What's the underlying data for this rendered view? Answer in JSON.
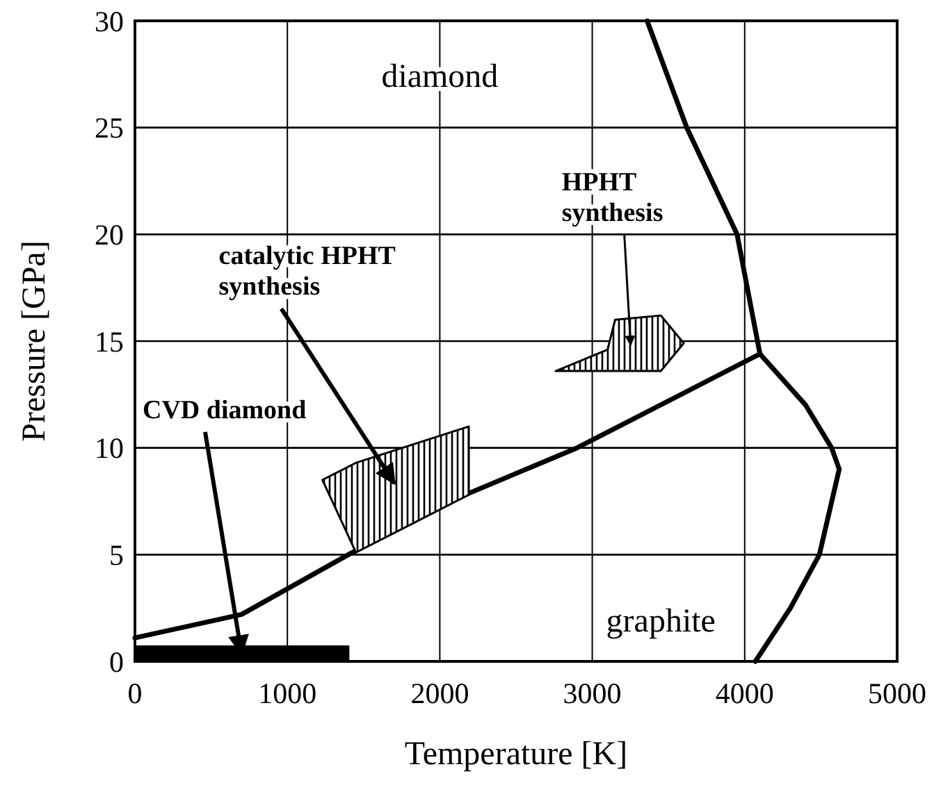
{
  "chart_data": {
    "type": "line",
    "xlabel": "Temperature [K]",
    "ylabel": "Pressure [GPa]",
    "xlim": [
      0,
      5000
    ],
    "xticks": [
      0,
      1000,
      2000,
      3000,
      4000,
      5000
    ],
    "ylim": [
      0,
      30
    ],
    "yticks": [
      0,
      5,
      10,
      15,
      20,
      25,
      30
    ],
    "grid": true,
    "series": [
      {
        "color": "#000000",
        "x": [
          0,
          700,
          1400,
          2000,
          2900,
          4100
        ],
        "values": [
          1.1,
          2.2,
          5,
          7.3,
          10,
          14.4
        ]
      },
      {
        "color": "#000000",
        "x": [
          4100,
          3950,
          3620,
          3360
        ],
        "values": [
          14.4,
          20,
          25,
          30
        ]
      },
      {
        "color": "#000000",
        "x": [
          4100,
          4400,
          4570,
          4620,
          4490,
          4300,
          4070
        ],
        "values": [
          14.4,
          12,
          10,
          9,
          5,
          2.5,
          0
        ]
      },
      {
        "type": "area",
        "name": "CVD diamond",
        "color": "#000000",
        "x": [
          0,
          1400,
          1400,
          0
        ],
        "values": [
          0,
          0,
          0.7,
          0.7
        ]
      },
      {
        "type": "area",
        "name": "catalytic HPHT\nsynthesis",
        "color": "#000000",
        "x": [
          1230,
          1450,
          2190,
          2190,
          1450
        ],
        "values": [
          8.5,
          5.1,
          7.8,
          11,
          9.3
        ]
      },
      {
        "type": "area",
        "name": "HPHT\nsynthesis",
        "color": "#000000",
        "x": [
          2760,
          3450,
          3600,
          3450,
          3150,
          3100
        ],
        "values": [
          13.6,
          13.6,
          14.9,
          16.2,
          16,
          14.6
        ]
      }
    ],
    "annotations": [
      "diamond",
      "graphite"
    ]
  }
}
